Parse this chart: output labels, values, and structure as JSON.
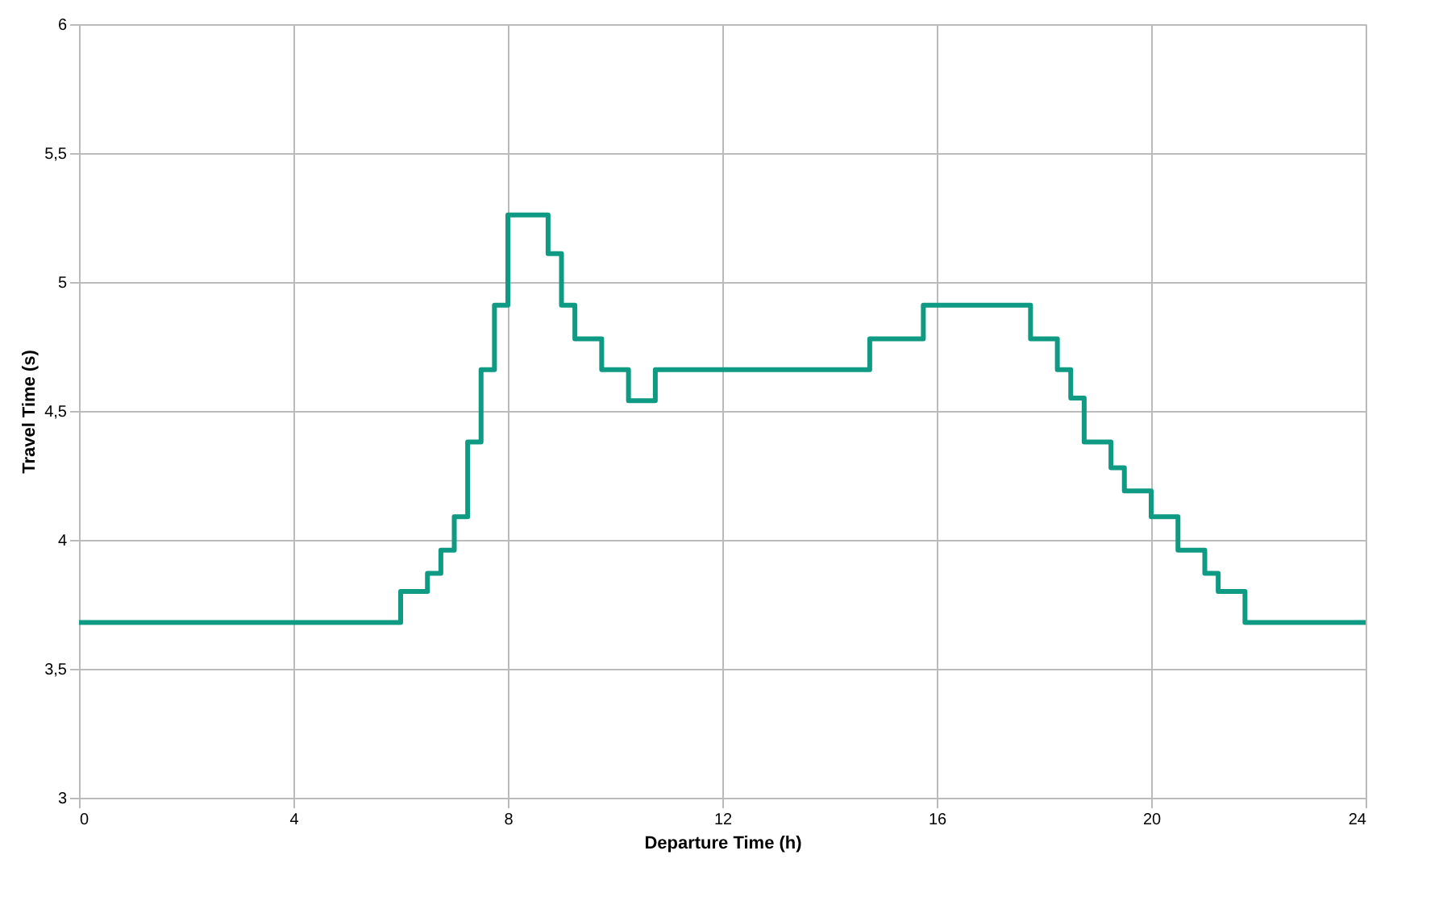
{
  "chart_data": {
    "type": "step",
    "xlabel": "Departure Time (h)",
    "ylabel": "Travel Time (s)",
    "x": [
      0,
      6,
      6.5,
      6.75,
      7,
      7.25,
      7.5,
      7.75,
      8,
      8.75,
      9,
      9.25,
      9.75,
      10.25,
      10.75,
      14.75,
      15.75,
      17.75,
      18.25,
      18.5,
      18.75,
      19.25,
      19.5,
      20,
      20.5,
      21,
      21.25,
      21.75,
      24
    ],
    "series": [
      {
        "color": "#0e9a83",
        "values": [
          3.68,
          3.8,
          3.87,
          3.96,
          4.09,
          4.38,
          4.66,
          4.91,
          5.26,
          5.11,
          4.91,
          4.78,
          4.66,
          4.54,
          4.66,
          4.78,
          4.91,
          4.78,
          4.66,
          4.55,
          4.38,
          4.28,
          4.19,
          4.09,
          3.96,
          3.87,
          3.8,
          3.68,
          3.68
        ]
      }
    ],
    "xlim": [
      0,
      24
    ],
    "xticks": [
      0,
      4,
      8,
      12,
      16,
      20,
      24
    ],
    "ylim": [
      3,
      6
    ],
    "yticks": [
      3,
      {
        "value": 3.5,
        "label": "3,5"
      },
      4,
      {
        "value": 4.5,
        "label": "4,5"
      },
      5,
      {
        "value": 5.5,
        "label": "5,5"
      },
      6
    ],
    "grid": true,
    "marker": "none",
    "line_style": "solid"
  }
}
